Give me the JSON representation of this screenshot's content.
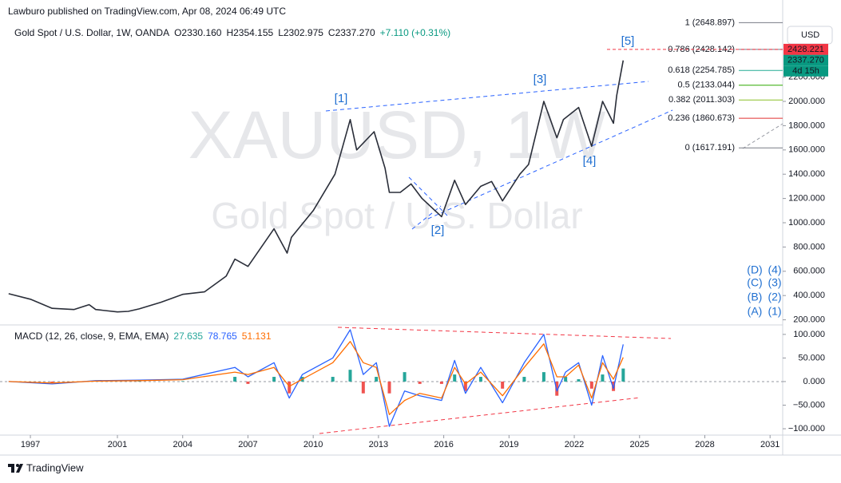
{
  "header": {
    "publisher": "Lawburo published on TradingView.com, Apr 08, 2024 06:49 UTC",
    "watermark_ticker": "XAUUSD, 1W",
    "watermark_name": "Gold Spot / U.S. Dollar",
    "currency": "USD",
    "footer": "TradingView"
  },
  "waves": [
    "[1]",
    "[2]",
    "[3]",
    "[4]",
    "[5]"
  ],
  "corrective_labels": [
    [
      "(D)",
      "(4)"
    ],
    [
      "(C)",
      "(3)"
    ],
    [
      "(B)",
      "(2)"
    ],
    [
      "(A)",
      "(1)"
    ]
  ],
  "chart_data": [
    {
      "type": "line",
      "title": "Gold Spot / U.S. Dollar, 1W, OANDA",
      "ohlc": [
        "O2330.160",
        "H2354.155",
        "L2302.975",
        "C2337.270",
        "+7.110 (+0.31%)"
      ],
      "change_color": "#089981",
      "color": "#2a2e39",
      "x": [
        1996.0,
        1997.0,
        1998.0,
        1999.0,
        1999.7,
        2000.0,
        2001.0,
        2001.5,
        2002.0,
        2003.0,
        2004.0,
        2005.0,
        2006.0,
        2006.4,
        2007.0,
        2008.2,
        2008.8,
        2009.0,
        2010.0,
        2011.0,
        2011.7,
        2012.0,
        2012.8,
        2013.3,
        2013.5,
        2014.0,
        2014.5,
        2015.0,
        2015.9,
        2016.5,
        2017.0,
        2017.7,
        2018.2,
        2018.7,
        2019.5,
        2019.9,
        2020.6,
        2021.2,
        2021.5,
        2022.2,
        2022.8,
        2023.3,
        2023.8,
        2023.95,
        2024.25
      ],
      "values": [
        415,
        370,
        295,
        285,
        325,
        285,
        265,
        270,
        290,
        345,
        410,
        430,
        560,
        700,
        640,
        950,
        750,
        880,
        1100,
        1400,
        1850,
        1600,
        1750,
        1450,
        1250,
        1250,
        1320,
        1200,
        1050,
        1350,
        1150,
        1300,
        1340,
        1180,
        1400,
        1480,
        2000,
        1700,
        1850,
        1950,
        1630,
        2000,
        1820,
        2050,
        2337.27
      ],
      "xlim": [
        1995.97,
        2031.58
      ],
      "xticks": [
        1997,
        2001,
        2004,
        2007,
        2010,
        2013,
        2016,
        2019,
        2022,
        2025,
        2028,
        2031
      ],
      "ylim": [
        171,
        2783
      ],
      "yticks": [
        {
          "value": 200,
          "label": "200.000"
        },
        {
          "value": 400,
          "label": "400.000"
        },
        {
          "value": 600,
          "label": "600.000"
        },
        {
          "value": 800,
          "label": "800.000"
        },
        {
          "value": 1000,
          "label": "1000.000"
        },
        {
          "value": 1200,
          "label": "1200.000"
        },
        {
          "value": 1400,
          "label": "1400.000"
        },
        {
          "value": 1600,
          "label": "1600.000"
        },
        {
          "value": 1800,
          "label": "1800.000"
        },
        {
          "value": 2000,
          "label": "2000.000"
        },
        {
          "value": 2200,
          "label": "2200.000"
        }
      ],
      "fib_levels": [
        {
          "value": 2648.897,
          "label": "1 (2648.897)",
          "color": "#787b86"
        },
        {
          "value": 2428.142,
          "label": "0.786 (2428.142)",
          "color": "#787b86"
        },
        {
          "value": 2254.785,
          "label": "0.618 (2254.785)",
          "color": "#22ab94"
        },
        {
          "value": 2133.044,
          "label": "0.5 (2133.044)",
          "color": "#2fa800"
        },
        {
          "value": 2011.303,
          "label": "0.382 (2011.303)",
          "color": "#8cbf26"
        },
        {
          "value": 1860.673,
          "label": "0.236 (1860.673)",
          "color": "#e03030"
        },
        {
          "value": 1617.191,
          "label": "0 (1617.191)",
          "color": "#787b86"
        }
      ],
      "price_tags": [
        {
          "value": 2428.221,
          "label": "2428.221",
          "color": "#f23645"
        },
        {
          "value": 2337.27,
          "label": "2337.270",
          "sub": "4d 15h",
          "color": "#089981"
        }
      ]
    },
    {
      "type": "macd",
      "title": "MACD (12, 26, close, 9, EMA, EMA)",
      "legend_values": [
        27.635,
        78.765,
        51.131
      ],
      "x": [
        1996,
        1998,
        2000,
        2002,
        2004,
        2006.4,
        2007.0,
        2008.2,
        2008.9,
        2009.5,
        2010.9,
        2011.7,
        2012.3,
        2012.9,
        2013.5,
        2014.2,
        2014.9,
        2015.9,
        2016.5,
        2017.0,
        2017.7,
        2018.7,
        2019.7,
        2020.6,
        2021.2,
        2021.6,
        2022.2,
        2022.8,
        2023.3,
        2023.8,
        2024.25
      ],
      "histogram": {
        "up_color": "#26a69a",
        "down_color": "#ef5350",
        "values": [
          0,
          -2,
          1,
          1,
          1,
          10,
          -5,
          10,
          -25,
          10,
          10,
          25,
          -25,
          10,
          -25,
          20,
          -5,
          -5,
          15,
          -20,
          10,
          -15,
          10,
          20,
          -30,
          10,
          5,
          -15,
          15,
          -20,
          27.635
        ]
      },
      "macd_line": {
        "color": "#2962ff",
        "values": [
          0,
          -5,
          2,
          3,
          5,
          30,
          10,
          40,
          -35,
          15,
          50,
          110,
          15,
          40,
          -95,
          -20,
          -30,
          -40,
          45,
          -25,
          30,
          -45,
          40,
          100,
          -20,
          20,
          40,
          -50,
          55,
          -15,
          78.765
        ]
      },
      "signal_line": {
        "color": "#ff6d00",
        "values": [
          0,
          -3,
          1,
          2,
          4,
          20,
          15,
          30,
          -10,
          5,
          40,
          85,
          40,
          30,
          -70,
          -40,
          -25,
          -35,
          30,
          -5,
          20,
          -30,
          30,
          80,
          10,
          10,
          35,
          -35,
          40,
          5,
          51.131
        ]
      },
      "xlim": [
        1995.97,
        2031.58
      ],
      "ylim": [
        -113.5,
        115
      ],
      "yticks": [
        {
          "value": 100,
          "label": "100.000"
        },
        {
          "value": 50,
          "label": "50.000"
        },
        {
          "value": 0,
          "label": "0.000"
        },
        {
          "value": -50,
          "label": "−50.000"
        },
        {
          "value": -100,
          "label": "−100.000"
        }
      ]
    }
  ]
}
